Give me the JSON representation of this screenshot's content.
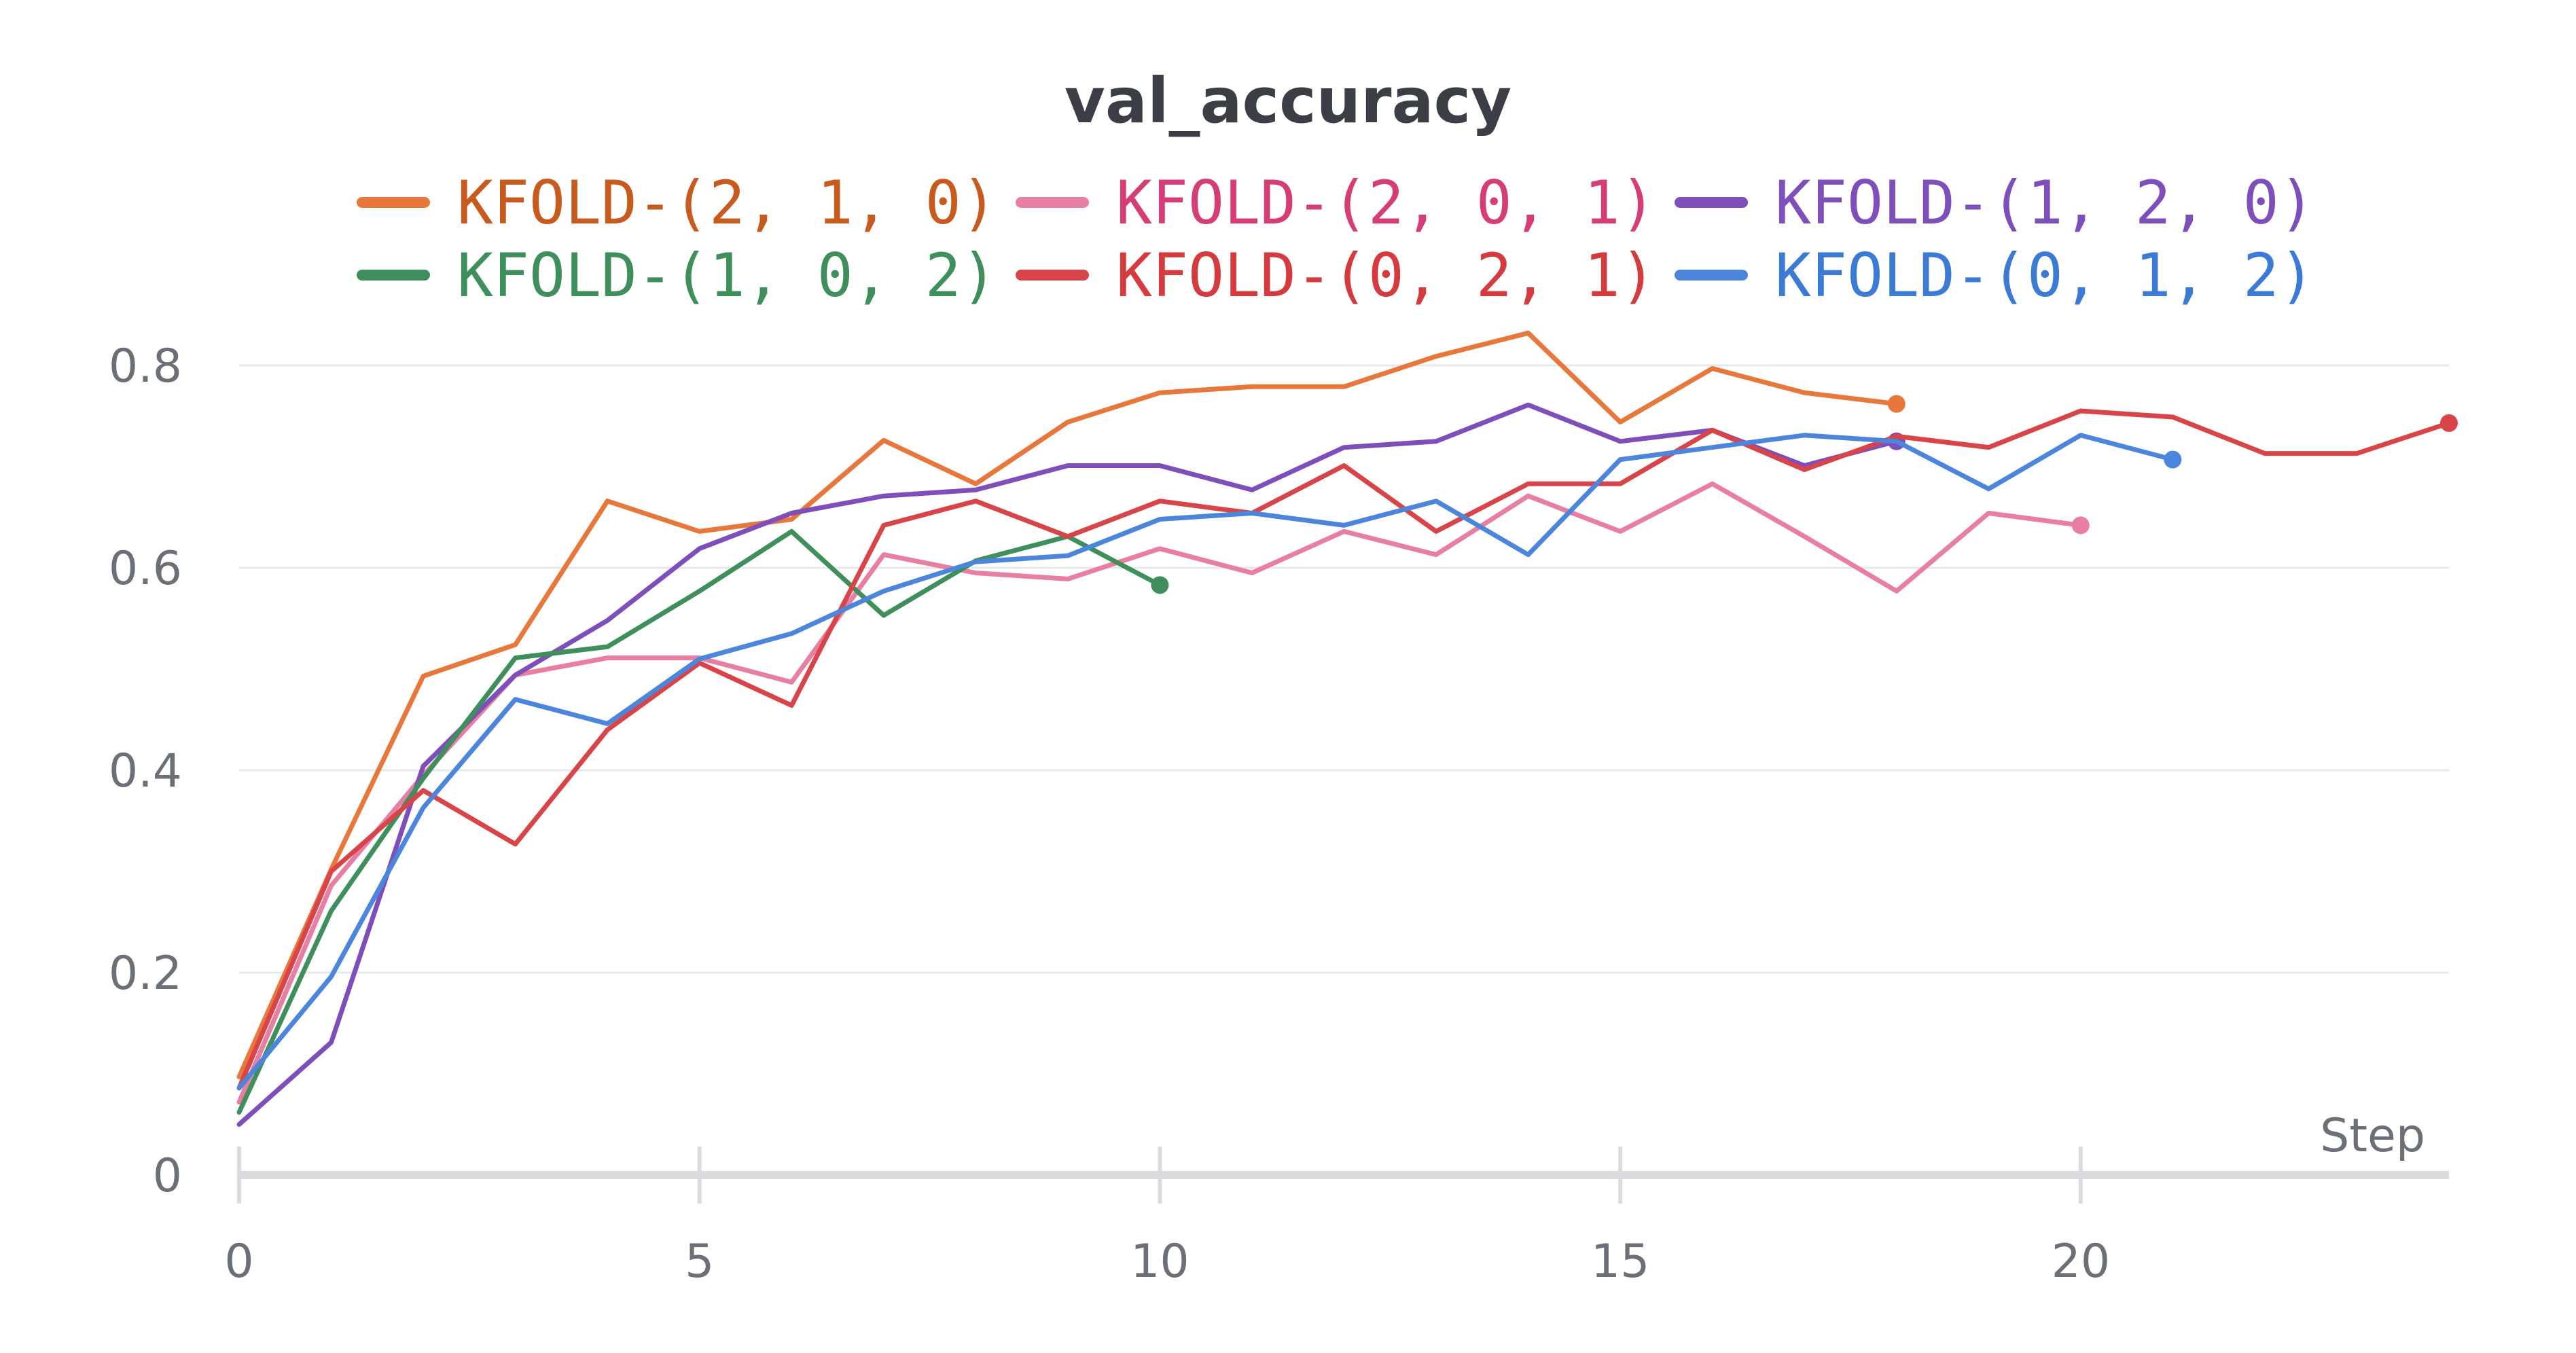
{
  "chart_data": {
    "type": "line",
    "title": "val_accuracy",
    "xlabel": "Step",
    "ylabel": "",
    "xlim": [
      0,
      24
    ],
    "ylim": [
      0,
      0.85
    ],
    "x_ticks": [
      0,
      5,
      10,
      15,
      20
    ],
    "y_ticks": [
      0,
      0.2,
      0.4,
      0.6,
      0.8
    ],
    "y_tick_labels": [
      "0",
      "0.2",
      "0.4",
      "0.6",
      "0.8"
    ],
    "grid": true,
    "legend_placement": "top",
    "series": [
      {
        "name": "KFOLD-(2, 1, 0)",
        "color": "#e8773b",
        "label_color": "#c95a1e",
        "x": [
          0,
          1,
          2,
          3,
          4,
          5,
          6,
          7,
          8,
          9,
          10,
          11,
          12,
          13,
          14,
          15,
          16,
          17,
          18
        ],
        "values": [
          0.097,
          0.302,
          0.493,
          0.524,
          0.666,
          0.636,
          0.648,
          0.726,
          0.683,
          0.744,
          0.773,
          0.779,
          0.779,
          0.809,
          0.832,
          0.744,
          0.797,
          0.773,
          0.762
        ]
      },
      {
        "name": "KFOLD-(2, 0, 1)",
        "color": "#e87fa3",
        "label_color": "#d63c76",
        "x": [
          0,
          1,
          2,
          3,
          4,
          5,
          6,
          7,
          8,
          9,
          10,
          11,
          12,
          13,
          14,
          15,
          16,
          17,
          18,
          19,
          20
        ],
        "values": [
          0.072,
          0.286,
          0.395,
          0.494,
          0.511,
          0.511,
          0.487,
          0.613,
          0.595,
          0.589,
          0.619,
          0.595,
          0.636,
          0.613,
          0.671,
          0.636,
          0.683,
          0.631,
          0.577,
          0.654,
          0.642
        ]
      },
      {
        "name": "KFOLD-(1, 2, 0)",
        "color": "#7e4fbb",
        "label_color": "#7e4fbb",
        "x": [
          0,
          1,
          2,
          3,
          4,
          5,
          6,
          7,
          8,
          9,
          10,
          11,
          12,
          13,
          14,
          15,
          16,
          17,
          18
        ],
        "values": [
          0.05,
          0.131,
          0.404,
          0.494,
          0.548,
          0.619,
          0.654,
          0.671,
          0.677,
          0.701,
          0.701,
          0.677,
          0.719,
          0.725,
          0.761,
          0.725,
          0.736,
          0.701,
          0.725
        ]
      },
      {
        "name": "KFOLD-(1, 0, 2)",
        "color": "#3f8f5c",
        "label_color": "#3f8f5c",
        "x": [
          0,
          1,
          2,
          3,
          4,
          5,
          6,
          7,
          8,
          9,
          10
        ],
        "values": [
          0.062,
          0.261,
          0.392,
          0.511,
          0.522,
          0.577,
          0.636,
          0.553,
          0.607,
          0.631,
          0.583
        ]
      },
      {
        "name": "KFOLD-(0, 2, 1)",
        "color": "#d94448",
        "label_color": "#d43a3e",
        "x": [
          0,
          1,
          2,
          3,
          4,
          5,
          6,
          7,
          8,
          9,
          10,
          11,
          12,
          13,
          14,
          15,
          16,
          17,
          18,
          19,
          20,
          21,
          22,
          23,
          24
        ],
        "values": [
          0.086,
          0.3,
          0.38,
          0.327,
          0.44,
          0.506,
          0.464,
          0.642,
          0.666,
          0.631,
          0.666,
          0.654,
          0.701,
          0.636,
          0.683,
          0.683,
          0.736,
          0.697,
          0.73,
          0.719,
          0.755,
          0.749,
          0.713,
          0.713,
          0.743
        ]
      },
      {
        "name": "KFOLD-(0, 1, 2)",
        "color": "#4c86dc",
        "label_color": "#3b7bd6",
        "x": [
          0,
          1,
          2,
          3,
          4,
          5,
          6,
          7,
          8,
          9,
          10,
          11,
          12,
          13,
          14,
          15,
          16,
          17,
          18,
          19,
          20,
          21
        ],
        "values": [
          0.086,
          0.196,
          0.363,
          0.47,
          0.446,
          0.51,
          0.535,
          0.577,
          0.606,
          0.612,
          0.648,
          0.654,
          0.642,
          0.666,
          0.613,
          0.707,
          0.719,
          0.731,
          0.725,
          0.678,
          0.731,
          0.707
        ]
      }
    ]
  }
}
